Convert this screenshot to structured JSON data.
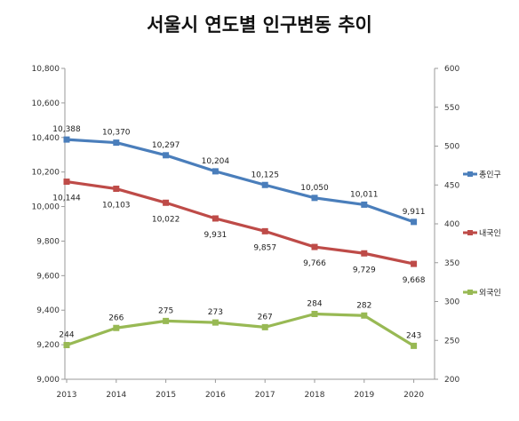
{
  "chart_data": {
    "type": "line",
    "title": "서울시 연도별 인구변동 추이",
    "categories": [
      "2013",
      "2014",
      "2015",
      "2016",
      "2017",
      "2018",
      "2019",
      "2020"
    ],
    "y_left": {
      "range": [
        9000,
        10800
      ],
      "ticks": [
        9000,
        9200,
        9400,
        9600,
        9800,
        10000,
        10200,
        10400,
        10600,
        10800
      ],
      "tick_labels": [
        "9,000",
        "9,200",
        "9,400",
        "9,600",
        "9,800",
        "10,000",
        "10,200",
        "10,400",
        "10,600",
        "10,800"
      ]
    },
    "y_right": {
      "range": [
        200,
        600
      ],
      "ticks": [
        200,
        250,
        300,
        350,
        400,
        450,
        500,
        550,
        600
      ],
      "tick_labels": [
        "200",
        "250",
        "300",
        "350",
        "400",
        "450",
        "500",
        "550",
        "600"
      ]
    },
    "series": [
      {
        "name": "총인구",
        "axis": "left",
        "color": "#4a7ebb",
        "values": [
          10388,
          10370,
          10297,
          10204,
          10125,
          10050,
          10011,
          9911
        ],
        "labels": [
          "10,388",
          "10,370",
          "10,297",
          "10,204",
          "10,125",
          "10,050",
          "10,011",
          "9,911"
        ],
        "label_position": "above"
      },
      {
        "name": "내국인",
        "axis": "left",
        "color": "#be4b48",
        "values": [
          10144,
          10103,
          10022,
          9931,
          9857,
          9766,
          9729,
          9668
        ],
        "labels": [
          "10,144",
          "10,103",
          "10,022",
          "9,931",
          "9,857",
          "9,766",
          "9,729",
          "9,668"
        ],
        "label_position": "below"
      },
      {
        "name": "외국인",
        "axis": "right",
        "color": "#98b954",
        "values": [
          244,
          266,
          275,
          273,
          267,
          284,
          282,
          243
        ],
        "labels": [
          "244",
          "266",
          "275",
          "273",
          "267",
          "284",
          "282",
          "243"
        ],
        "label_position": "above"
      }
    ],
    "grid": false,
    "legend": "right"
  }
}
